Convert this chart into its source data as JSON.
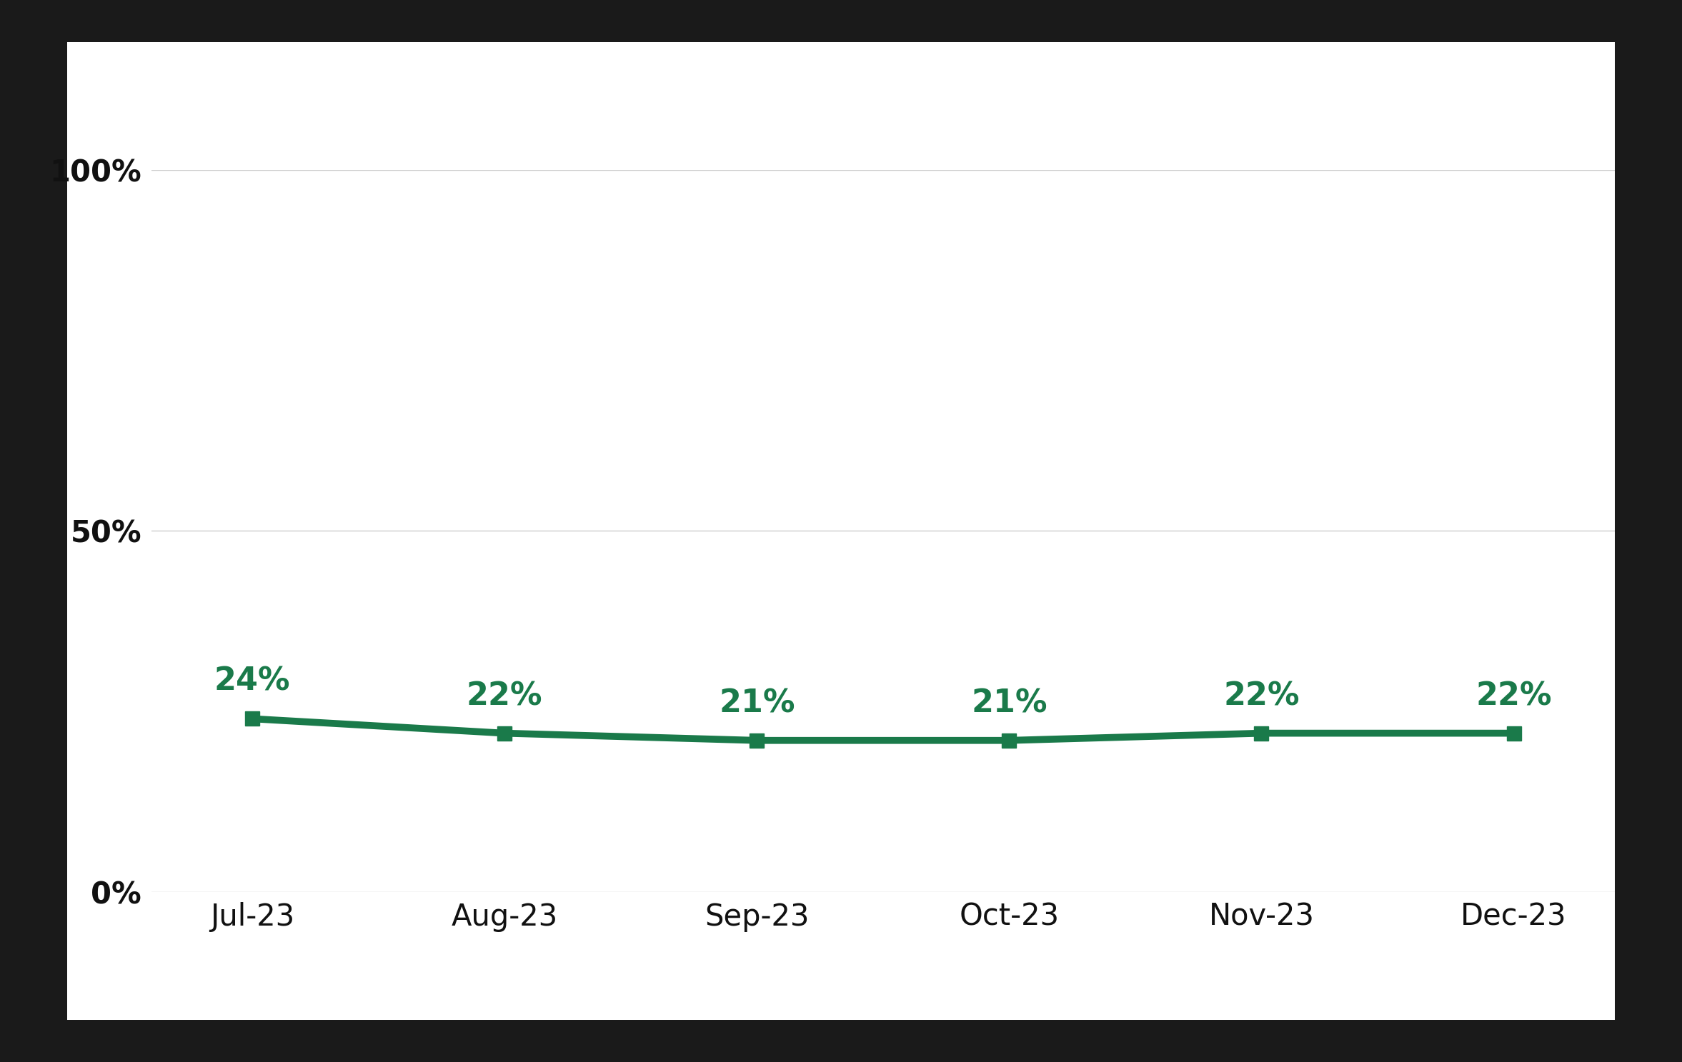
{
  "categories": [
    "Jul-23",
    "Aug-23",
    "Sep-23",
    "Oct-23",
    "Nov-23",
    "Dec-23"
  ],
  "values": [
    24,
    22,
    21,
    21,
    22,
    22
  ],
  "line_color": "#1a7a4a",
  "marker_color": "#1a7a4a",
  "label_color": "#1a7a4a",
  "outer_bg_color": "#1a1a1a",
  "card_bg_color": "#ffffff",
  "ytick_label_color": "#111111",
  "xtick_label_color": "#111111",
  "yticks": [
    0,
    50,
    100
  ],
  "ytick_labels": [
    "0%",
    "50%",
    "100%"
  ],
  "ylim": [
    0,
    100
  ],
  "label_fontsize": 32,
  "tick_fontsize": 30,
  "line_width": 7,
  "marker_size": 14,
  "marker_style": "s"
}
